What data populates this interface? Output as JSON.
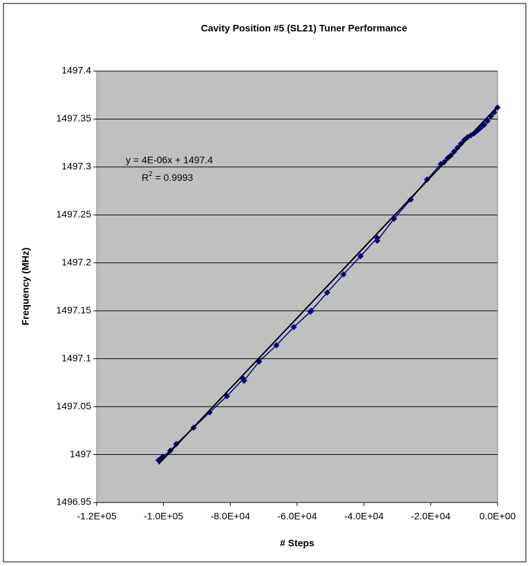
{
  "chart_data": {
    "type": "scatter",
    "title": "Cavity Position #5 (SL21) Tuner Performance",
    "xlabel": "# Steps",
    "ylabel": "Frequency (MHz)",
    "xlim": [
      -120000,
      0
    ],
    "xticks": [
      {
        "value": -120000,
        "label": "-1.2E+05"
      },
      {
        "value": -100000,
        "label": "-1.0E+05"
      },
      {
        "value": -80000,
        "label": "-8.0E+04"
      },
      {
        "value": -60000,
        "label": "-6.0E+04"
      },
      {
        "value": -40000,
        "label": "-4.0E+04"
      },
      {
        "value": -20000,
        "label": "-2.0E+04"
      },
      {
        "value": 0,
        "label": "0.0E+00"
      }
    ],
    "ylim": [
      1496.95,
      1497.4
    ],
    "yticks": [
      1496.95,
      1497,
      1497.05,
      1497.1,
      1497.15,
      1497.2,
      1497.25,
      1497.3,
      1497.35,
      1497.4
    ],
    "grid": true,
    "plot_background": "#c0c0c0",
    "series": [
      {
        "color": "#000080",
        "x": [
          -101500,
          -100800,
          -100200,
          -98000,
          -96200,
          -91000,
          -86200,
          -81000,
          -76100,
          -75900,
          -71400,
          -66200,
          -61000,
          -56000,
          -55800,
          -51000,
          -46100,
          -41000,
          -36000,
          -36000,
          -31000,
          -26000,
          -21100,
          -17000,
          -16000,
          -15000,
          -14000,
          -13000,
          -12000,
          -11000,
          -10000,
          -9000,
          -8000,
          -7000,
          -6000,
          -5000,
          -4000,
          -3000,
          -2000,
          -1000,
          0
        ],
        "values": [
          1496.994,
          1496.996,
          1496.998,
          1497.004,
          1497.011,
          1497.028,
          1497.044,
          1497.061,
          1497.079,
          1497.077,
          1497.097,
          1497.114,
          1497.133,
          1497.149,
          1497.15,
          1497.169,
          1497.188,
          1497.207,
          1497.226,
          1497.223,
          1497.246,
          1497.266,
          1497.287,
          1497.303,
          1497.305,
          1497.309,
          1497.312,
          1497.316,
          1497.32,
          1497.324,
          1497.328,
          1497.331,
          1497.333,
          1497.335,
          1497.338,
          1497.341,
          1497.344,
          1497.348,
          1497.353,
          1497.357,
          1497.362
        ]
      }
    ],
    "trendline": {
      "color": "#000000",
      "x": [
        -101500,
        0
      ],
      "values": [
        1496.99,
        1497.363
      ]
    },
    "annotation": {
      "equation": "y = 4E-06x + 1497.4",
      "r_label": "R",
      "r_sup": "2",
      "r_value": " = 0.9993"
    }
  }
}
